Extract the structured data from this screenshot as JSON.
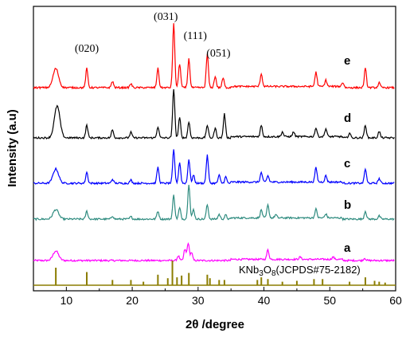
{
  "chart_data": {
    "type": "line",
    "xlabel": "2θ /degree",
    "ylabel": "Intensity (a.u)",
    "xlim": [
      5,
      60
    ],
    "xticks": [
      10,
      20,
      30,
      40,
      50,
      60
    ],
    "yticks_shown": false,
    "grid": false,
    "series": [
      {
        "name": "a",
        "color": "#ff00ff",
        "offset": 0,
        "peaks": [
          [
            8.4,
            12
          ],
          [
            27.0,
            6
          ],
          [
            28.0,
            14
          ],
          [
            28.5,
            22
          ],
          [
            29.0,
            10
          ],
          [
            40.6,
            12
          ],
          [
            45.5,
            3
          ],
          [
            50.5,
            3
          ],
          [
            55.3,
            3
          ]
        ]
      },
      {
        "name": "b",
        "color": "#2e8b7f",
        "offset": 1,
        "peaks": [
          [
            8.4,
            12
          ],
          [
            13.1,
            10
          ],
          [
            17.0,
            4
          ],
          [
            19.8,
            3
          ],
          [
            23.9,
            10
          ],
          [
            26.3,
            30
          ],
          [
            27.2,
            14
          ],
          [
            28.6,
            44
          ],
          [
            29.3,
            12
          ],
          [
            31.4,
            18
          ],
          [
            33.2,
            6
          ],
          [
            34.2,
            5
          ],
          [
            39.6,
            10
          ],
          [
            40.6,
            16
          ],
          [
            41.8,
            4
          ],
          [
            47.9,
            11
          ],
          [
            49.4,
            5
          ],
          [
            55.4,
            10
          ],
          [
            57.5,
            4
          ]
        ]
      },
      {
        "name": "c",
        "color": "#0000ff",
        "offset": 2,
        "peaks": [
          [
            8.4,
            18
          ],
          [
            13.1,
            14
          ],
          [
            17.0,
            5
          ],
          [
            19.8,
            4
          ],
          [
            23.9,
            20
          ],
          [
            26.3,
            42
          ],
          [
            27.2,
            26
          ],
          [
            28.6,
            30
          ],
          [
            29.3,
            10
          ],
          [
            31.4,
            35
          ],
          [
            33.2,
            10
          ],
          [
            34.2,
            8
          ],
          [
            39.6,
            12
          ],
          [
            40.6,
            8
          ],
          [
            47.9,
            18
          ],
          [
            49.4,
            8
          ],
          [
            55.4,
            18
          ],
          [
            57.5,
            6
          ]
        ]
      },
      {
        "name": "d",
        "color": "#000000",
        "offset": 3,
        "peaks": [
          [
            8.6,
            40
          ],
          [
            13.1,
            16
          ],
          [
            17.0,
            10
          ],
          [
            19.8,
            7
          ],
          [
            23.9,
            14
          ],
          [
            26.3,
            62
          ],
          [
            27.2,
            25
          ],
          [
            28.6,
            20
          ],
          [
            31.4,
            16
          ],
          [
            32.6,
            12
          ],
          [
            34.0,
            30
          ],
          [
            39.6,
            14
          ],
          [
            42.8,
            6
          ],
          [
            44.5,
            6
          ],
          [
            47.9,
            11
          ],
          [
            49.4,
            10
          ],
          [
            53.0,
            6
          ],
          [
            55.4,
            16
          ],
          [
            57.5,
            8
          ]
        ]
      },
      {
        "name": "e",
        "color": "#ff0000",
        "offset": 4,
        "peaks": [
          [
            8.4,
            24
          ],
          [
            13.1,
            24
          ],
          [
            17.0,
            8
          ],
          [
            19.8,
            5
          ],
          [
            23.9,
            24
          ],
          [
            26.3,
            80
          ],
          [
            27.2,
            30
          ],
          [
            28.6,
            36
          ],
          [
            31.4,
            42
          ],
          [
            32.6,
            14
          ],
          [
            33.8,
            12
          ],
          [
            39.6,
            16
          ],
          [
            47.9,
            18
          ],
          [
            49.4,
            8
          ],
          [
            52.0,
            6
          ],
          [
            55.4,
            24
          ],
          [
            57.5,
            6
          ]
        ]
      }
    ],
    "reference": {
      "label_parts": [
        "KNb",
        "3",
        "O",
        "8",
        "(JCPDS#75-2182)"
      ],
      "color": "#8b7d00",
      "x": [
        8.4,
        13.1,
        17.0,
        19.8,
        21.7,
        23.9,
        25.4,
        26.1,
        26.8,
        27.5,
        28.6,
        31.4,
        31.8,
        33.2,
        34.0,
        39.0,
        39.6,
        40.6,
        42.8,
        45.0,
        47.6,
        48.9,
        53.0,
        55.4,
        56.8,
        57.5,
        58.4
      ],
      "y": [
        100,
        75,
        30,
        30,
        20,
        60,
        40,
        140,
        45,
        55,
        70,
        60,
        40,
        30,
        30,
        30,
        45,
        35,
        20,
        25,
        35,
        35,
        20,
        45,
        25,
        20,
        15
      ]
    },
    "annotations": [
      {
        "text": "(020)",
        "x": 13.1
      },
      {
        "text": "(031)",
        "x": 26.3
      },
      {
        "text": "(111)",
        "x": 28.6
      },
      {
        "text": "(051)",
        "x": 31.4
      }
    ]
  }
}
